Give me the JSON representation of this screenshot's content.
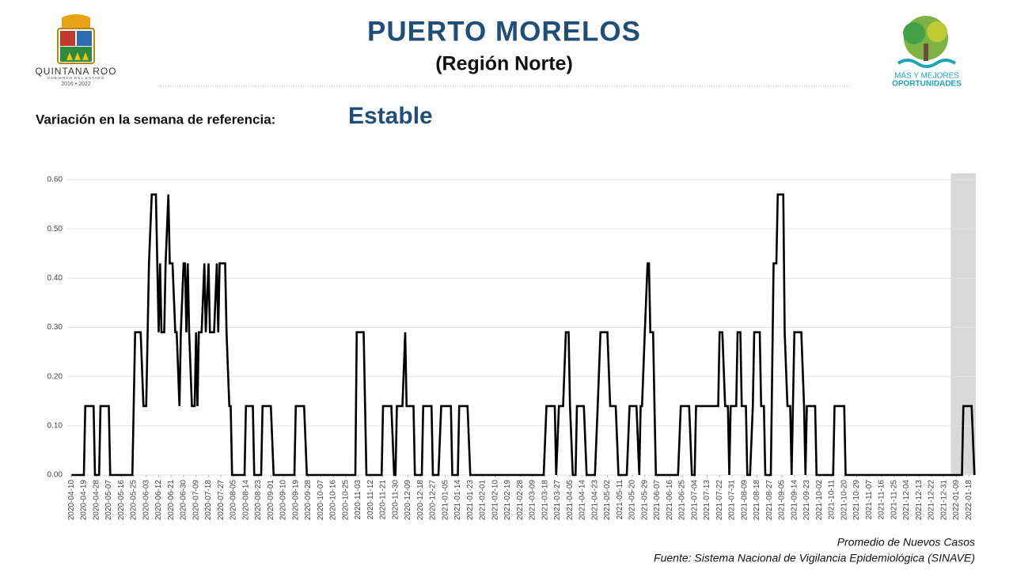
{
  "header": {
    "title": "PUERTO MORELOS",
    "subtitle": "(Región Norte)",
    "left_logo": {
      "name": "QUINTANA ROO",
      "subtitle": "GOBIERNO DEL ESTADO",
      "years": "2016 • 2022"
    },
    "right_logo": {
      "line1": "MÁS Y MEJORES",
      "line2": "OPORTUNIDADES"
    }
  },
  "status": {
    "label": "Variación en la semana de referencia:",
    "value": "Estable"
  },
  "chart_data": {
    "type": "line",
    "color": "#000000",
    "grid": true,
    "legend_label": "Promedio de Nuevos Casos",
    "source": "Fuente: Sistema Nacional de Vigilancia Epidemiológica (SINAVE)",
    "highlight_range": [
      "2022-01-05",
      "2022-01-23"
    ],
    "xlim": [
      "2020-04-07",
      "2022-01-23"
    ],
    "ylim": [
      0,
      0.6
    ],
    "yticks": [
      {
        "value": 0,
        "label": "0.00"
      },
      {
        "value": 0.1,
        "label": "0.10"
      },
      {
        "value": 0.2,
        "label": "0.20"
      },
      {
        "value": 0.3,
        "label": "0.30"
      },
      {
        "value": 0.4,
        "label": "0.40"
      },
      {
        "value": 0.5,
        "label": "0.50"
      },
      {
        "value": 0.6,
        "label": "0.60"
      }
    ],
    "xticks": [
      "2020-04-10",
      "2020-04-19",
      "2020-04-28",
      "2020-05-07",
      "2020-05-16",
      "2020-05-25",
      "2020-06-03",
      "2020-06-12",
      "2020-06-21",
      "2020-06-30",
      "2020-07-09",
      "2020-07-18",
      "2020-07-27",
      "2020-08-05",
      "2020-08-14",
      "2020-08-23",
      "2020-09-01",
      "2020-09-10",
      "2020-09-19",
      "2020-09-28",
      "2020-10-07",
      "2020-10-16",
      "2020-10-25",
      "2020-11-03",
      "2020-11-12",
      "2020-11-21",
      "2020-11-30",
      "2020-12-09",
      "2020-12-18",
      "2020-12-27",
      "2021-01-05",
      "2021-01-14",
      "2021-01-23",
      "2021-02-01",
      "2021-02-10",
      "2021-02-19",
      "2021-02-28",
      "2021-03-09",
      "2021-03-18",
      "2021-03-27",
      "2021-04-05",
      "2021-04-14",
      "2021-04-23",
      "2021-05-02",
      "2021-05-11",
      "2021-05-20",
      "2021-05-29",
      "2021-06-07",
      "2021-06-16",
      "2021-06-25",
      "2021-07-04",
      "2021-07-13",
      "2021-07-22",
      "2021-07-31",
      "2021-08-09",
      "2021-08-18",
      "2021-08-27",
      "2021-09-05",
      "2021-09-14",
      "2021-09-23",
      "2021-10-02",
      "2021-10-11",
      "2021-10-20",
      "2021-10-29",
      "2021-11-07",
      "2021-11-16",
      "2021-11-25",
      "2021-12-04",
      "2021-12-13",
      "2021-12-22",
      "2021-12-31",
      "2022-01-09",
      "2022-01-18"
    ],
    "x": [
      "2020-04-10",
      "2020-04-19",
      "2020-04-20",
      "2020-04-26",
      "2020-04-27",
      "2020-04-30",
      "2020-05-01",
      "2020-05-07",
      "2020-05-08",
      "2020-05-24",
      "2020-05-26",
      "2020-05-30",
      "2020-06-01",
      "2020-06-03",
      "2020-06-05",
      "2020-06-07",
      "2020-06-10",
      "2020-06-12",
      "2020-06-13",
      "2020-06-14",
      "2020-06-16",
      "2020-06-17",
      "2020-06-19",
      "2020-06-20",
      "2020-06-22",
      "2020-06-24",
      "2020-06-25",
      "2020-06-27",
      "2020-06-28",
      "2020-06-30",
      "2020-07-01",
      "2020-07-02",
      "2020-07-03",
      "2020-07-04",
      "2020-07-06",
      "2020-07-08",
      "2020-07-09",
      "2020-07-10",
      "2020-07-11",
      "2020-07-13",
      "2020-07-15",
      "2020-07-16",
      "2020-07-18",
      "2020-07-19",
      "2020-07-22",
      "2020-07-24",
      "2020-07-25",
      "2020-07-26",
      "2020-07-30",
      "2020-07-31",
      "2020-08-02",
      "2020-08-03",
      "2020-08-04",
      "2020-08-13",
      "2020-08-14",
      "2020-08-19",
      "2020-08-20",
      "2020-08-25",
      "2020-08-26",
      "2020-09-01",
      "2020-09-03",
      "2020-09-18",
      "2020-09-19",
      "2020-09-25",
      "2020-09-27",
      "2020-11-01",
      "2020-11-02",
      "2020-11-07",
      "2020-11-09",
      "2020-11-20",
      "2020-11-21",
      "2020-11-27",
      "2020-11-29",
      "2020-11-30",
      "2020-12-01",
      "2020-12-05",
      "2020-12-07",
      "2020-12-08",
      "2020-12-13",
      "2020-12-14",
      "2020-12-19",
      "2020-12-20",
      "2020-12-26",
      "2020-12-27",
      "2020-12-31",
      "2021-01-02",
      "2021-01-09",
      "2021-01-10",
      "2021-01-14",
      "2021-01-15",
      "2021-01-21",
      "2021-01-23",
      "2021-03-17",
      "2021-03-19",
      "2021-03-25",
      "2021-03-26",
      "2021-03-28",
      "2021-03-31",
      "2021-04-02",
      "2021-04-04",
      "2021-04-05",
      "2021-04-07",
      "2021-04-09",
      "2021-04-10",
      "2021-04-15",
      "2021-04-17",
      "2021-04-23",
      "2021-04-25",
      "2021-04-27",
      "2021-05-02",
      "2021-05-04",
      "2021-05-08",
      "2021-05-10",
      "2021-05-16",
      "2021-05-18",
      "2021-05-23",
      "2021-05-25",
      "2021-05-26",
      "2021-05-27",
      "2021-05-29",
      "2021-05-31",
      "2021-06-01",
      "2021-06-02",
      "2021-06-04",
      "2021-06-05",
      "2021-06-06",
      "2021-06-22",
      "2021-06-24",
      "2021-06-30",
      "2021-07-02",
      "2021-07-04",
      "2021-07-05",
      "2021-07-21",
      "2021-07-22",
      "2021-07-24",
      "2021-07-26",
      "2021-07-28",
      "2021-07-29",
      "2021-07-30",
      "2021-08-03",
      "2021-08-04",
      "2021-08-06",
      "2021-08-07",
      "2021-08-10",
      "2021-08-11",
      "2021-08-13",
      "2021-08-15",
      "2021-08-16",
      "2021-08-20",
      "2021-08-21",
      "2021-08-23",
      "2021-08-24",
      "2021-08-28",
      "2021-08-30",
      "2021-09-01",
      "2021-09-02",
      "2021-09-06",
      "2021-09-07",
      "2021-09-09",
      "2021-09-11",
      "2021-09-12",
      "2021-09-14",
      "2021-09-19",
      "2021-09-21",
      "2021-09-22",
      "2021-09-23",
      "2021-09-29",
      "2021-09-30",
      "2021-10-12",
      "2021-10-13",
      "2021-10-20",
      "2021-10-21",
      "2022-01-13",
      "2022-01-14",
      "2022-01-20",
      "2022-01-22"
    ],
    "values": [
      0,
      0,
      0.14,
      0.14,
      0,
      0,
      0.14,
      0.14,
      0,
      0,
      0.29,
      0.29,
      0.14,
      0.14,
      0.43,
      0.57,
      0.57,
      0.29,
      0.43,
      0.29,
      0.29,
      0.43,
      0.57,
      0.43,
      0.43,
      0.29,
      0.29,
      0.14,
      0.29,
      0.43,
      0.43,
      0.29,
      0.43,
      0.29,
      0.14,
      0.14,
      0.29,
      0.14,
      0.29,
      0.29,
      0.43,
      0.29,
      0.43,
      0.29,
      0.29,
      0.43,
      0.29,
      0.43,
      0.43,
      0.29,
      0.14,
      0.14,
      0,
      0,
      0.14,
      0.14,
      0,
      0,
      0.14,
      0.14,
      0,
      0,
      0.14,
      0.14,
      0,
      0,
      0.29,
      0.29,
      0,
      0,
      0.14,
      0.14,
      0,
      0,
      0.14,
      0.14,
      0.29,
      0.14,
      0.14,
      0,
      0,
      0.14,
      0.14,
      0,
      0,
      0.14,
      0.14,
      0,
      0,
      0.14,
      0.14,
      0,
      0,
      0.14,
      0.14,
      0,
      0.14,
      0.14,
      0.29,
      0.29,
      0.14,
      0,
      0,
      0.14,
      0.14,
      0,
      0,
      0.14,
      0.29,
      0.29,
      0.14,
      0.14,
      0,
      0,
      0.14,
      0.14,
      0,
      0.14,
      0.14,
      0.29,
      0.43,
      0.43,
      0.29,
      0.29,
      0.14,
      0,
      0,
      0.14,
      0.14,
      0,
      0,
      0.14,
      0.14,
      0.29,
      0.29,
      0.14,
      0.14,
      0,
      0.14,
      0.14,
      0.29,
      0.29,
      0.14,
      0.14,
      0,
      0,
      0.14,
      0.29,
      0.29,
      0.14,
      0.14,
      0,
      0,
      0.43,
      0.43,
      0.57,
      0.57,
      0.29,
      0.14,
      0.14,
      0,
      0.29,
      0.29,
      0.14,
      0,
      0.14,
      0.14,
      0,
      0,
      0.14,
      0.14,
      0,
      0,
      0.14,
      0.14,
      0
    ]
  }
}
